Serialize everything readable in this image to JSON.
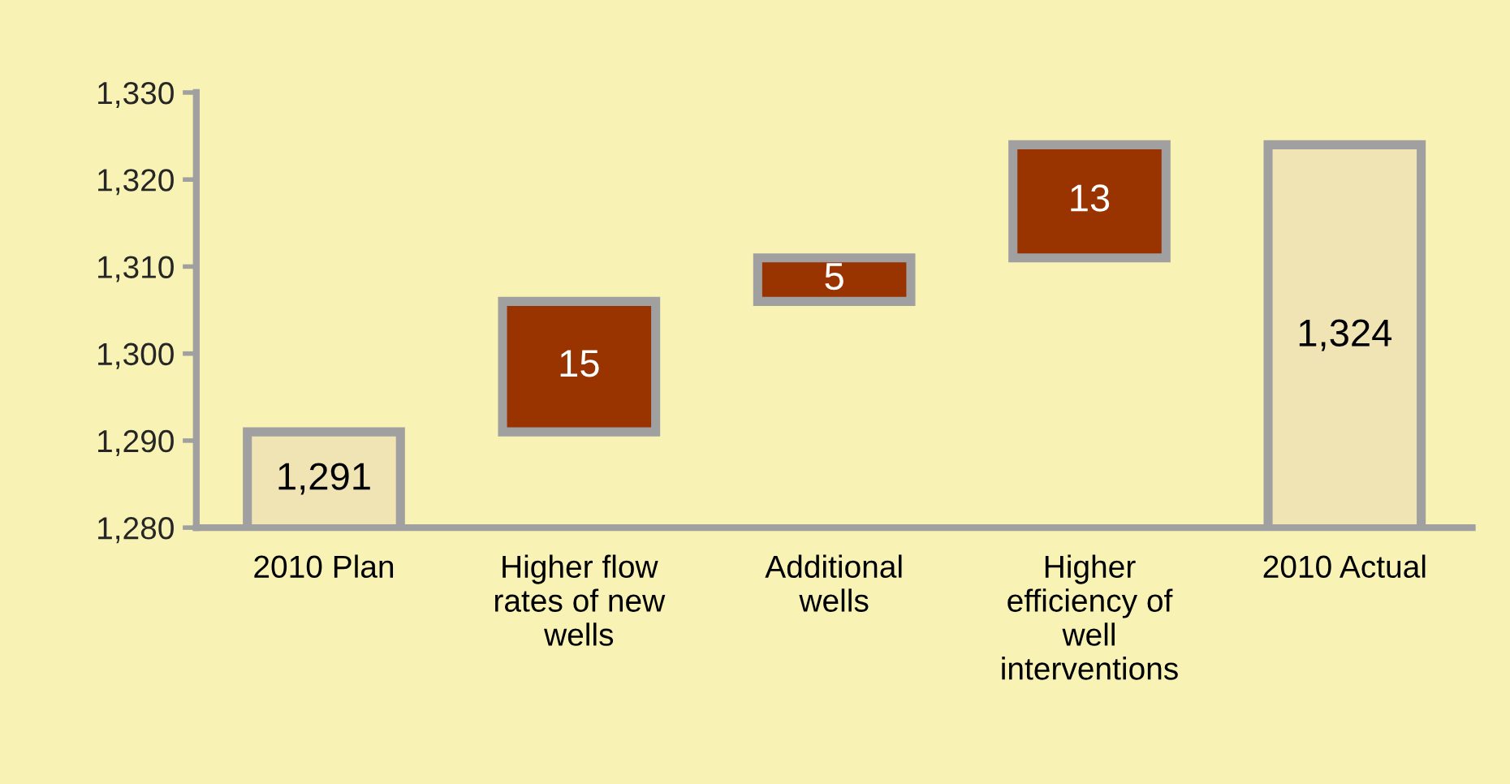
{
  "chart_data": {
    "type": "bar",
    "categories": [
      "2010 Plan",
      "Higher flow\nrates of new\nwells",
      "Additional\nwells",
      "Higher\nefficiency of\nwell\ninterventions",
      "2010 Actual"
    ],
    "values": [
      1291,
      15,
      5,
      13,
      1324
    ],
    "base": [
      0,
      1291,
      1306,
      1311,
      0
    ],
    "colors": [
      "#f0e4b4",
      "#993300",
      "#993300",
      "#993300",
      "#f0e4b4"
    ],
    "value_labels": [
      "1,291",
      "15",
      "5",
      "13",
      "1,324"
    ],
    "ylim": [
      1280,
      1330
    ],
    "yticks": [
      {
        "value": 1280,
        "label": "1,280"
      },
      {
        "value": 1290,
        "label": "1,290"
      },
      {
        "value": 1300,
        "label": "1,300"
      },
      {
        "value": 1310,
        "label": "1,310"
      },
      {
        "value": 1320,
        "label": "1,320"
      },
      {
        "value": 1330,
        "label": "1,330"
      }
    ],
    "grid": false,
    "legend": false
  }
}
